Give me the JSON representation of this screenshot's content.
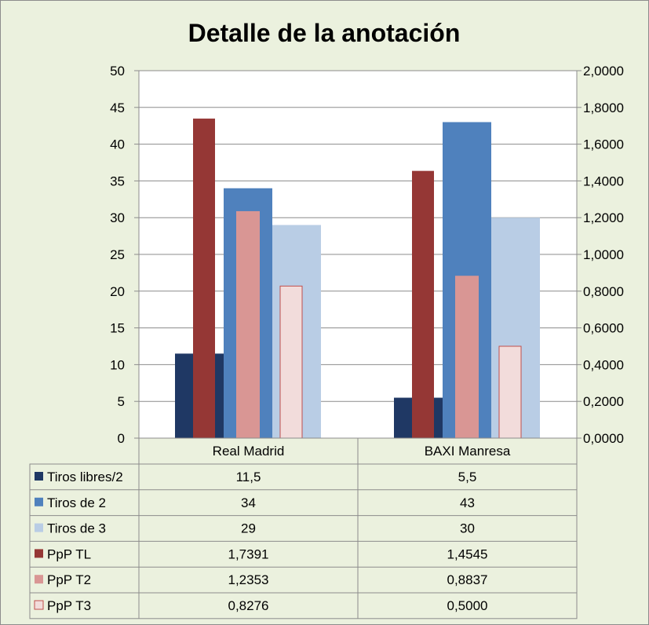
{
  "chart_data": {
    "type": "bar",
    "title": "Detalle de la anotación",
    "categories": [
      "Real Madrid",
      "BAXI Manresa"
    ],
    "primary_axis": {
      "ylim": [
        0,
        50
      ],
      "ticks": [
        "0",
        "5",
        "10",
        "15",
        "20",
        "25",
        "30",
        "35",
        "40",
        "45",
        "50"
      ]
    },
    "secondary_axis": {
      "ylim": [
        0,
        2
      ],
      "ticks": [
        "0,0000",
        "0,2000",
        "0,4000",
        "0,6000",
        "0,8000",
        "1,0000",
        "1,2000",
        "1,4000",
        "1,6000",
        "1,8000",
        "2,0000"
      ]
    },
    "series": [
      {
        "name": "Tiros libres/2",
        "axis": "primary",
        "color": "#1f3864",
        "values": [
          11.5,
          5.5
        ],
        "labels": [
          "11,5",
          "5,5"
        ]
      },
      {
        "name": "Tiros de 2",
        "axis": "primary",
        "color": "#4f81bd",
        "values": [
          34,
          43
        ],
        "labels": [
          "34",
          "43"
        ]
      },
      {
        "name": "Tiros de 3",
        "axis": "primary",
        "color": "#b9cde5",
        "values": [
          29,
          30
        ],
        "labels": [
          "29",
          "30"
        ]
      },
      {
        "name": "PpP TL",
        "axis": "secondary",
        "color": "#953735",
        "values": [
          1.7391,
          1.4545
        ],
        "labels": [
          "1,7391",
          "1,4545"
        ]
      },
      {
        "name": "PpP T2",
        "axis": "secondary",
        "color": "#d99694",
        "values": [
          1.2353,
          0.8837
        ],
        "labels": [
          "1,2353",
          "0,8837"
        ]
      },
      {
        "name": "PpP T3",
        "axis": "secondary",
        "color": "#f2dcdb",
        "values": [
          0.8276,
          0.5
        ],
        "labels": [
          "0,8276",
          "0,5000"
        ]
      }
    ],
    "grid": true,
    "legend": "data-table"
  }
}
